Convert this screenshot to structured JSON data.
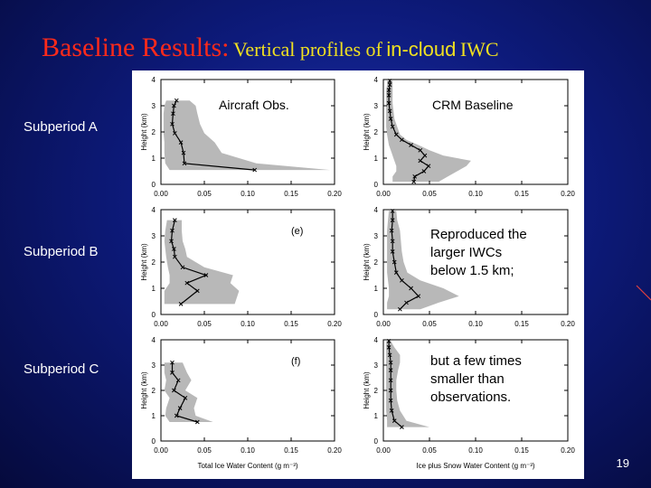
{
  "slide": {
    "title_main": "Baseline Results:",
    "title_part1": "Vertical profiles of",
    "title_part2": "in-cloud",
    "title_part3": "IWC",
    "row_labels": [
      "Subperiod A",
      "Subperiod B",
      "Subperiod C"
    ],
    "col_heads": [
      "Aircraft Obs.",
      "CRM Baseline"
    ],
    "annotation_b": [
      "Reproduced the",
      "larger IWCs",
      "below 1.5 km;"
    ],
    "annotation_c": [
      "but a few times",
      "smaller than",
      "observations."
    ],
    "panel_tags": [
      "(e)",
      "(f)"
    ],
    "page_number": "19",
    "colors": {
      "title_red": "#ff2a1a",
      "title_yellow": "#f0e020",
      "shade": "#b8b8b8",
      "line": "#000000"
    }
  },
  "chart_data": [
    {
      "type": "line",
      "panel": "Aircraft Obs. / Subperiod A",
      "xlim": [
        0,
        0.2
      ],
      "ylim": [
        0,
        4
      ],
      "ylabel": "Height (km)",
      "xticks": [
        "0.00",
        "0.05",
        "0.10",
        "0.15",
        "0.20"
      ],
      "yticks": [
        "0",
        "1",
        "2",
        "3",
        "4"
      ],
      "series": [
        {
          "x": [
            0.108,
            0.027,
            0.026,
            0.023,
            0.016,
            0.013,
            0.014,
            0.015,
            0.018
          ],
          "y": [
            0.55,
            0.8,
            1.2,
            1.6,
            1.95,
            2.3,
            2.7,
            3.0,
            3.2
          ]
        }
      ],
      "band_lo": [
        0.01,
        0.005,
        0.004,
        0.004,
        0.003,
        0.003,
        0.003,
        0.004,
        0.006
      ],
      "band_hi": [
        0.195,
        0.11,
        0.07,
        0.062,
        0.05,
        0.045,
        0.042,
        0.04,
        0.033
      ]
    },
    {
      "type": "line",
      "panel": "CRM Baseline / Subperiod A",
      "xlim": [
        0,
        0.2
      ],
      "ylim": [
        0,
        4
      ],
      "ylabel": "Height (km)",
      "xticks": [
        "0.00",
        "0.05",
        "0.10",
        "0.15",
        "0.20"
      ],
      "yticks": [
        "0",
        "1",
        "2",
        "3",
        "4"
      ],
      "series": [
        {
          "x": [
            0.033,
            0.034,
            0.044,
            0.049,
            0.04,
            0.045,
            0.04,
            0.03,
            0.02,
            0.014,
            0.01,
            0.008,
            0.007,
            0.006,
            0.006,
            0.006,
            0.007,
            0.007
          ],
          "y": [
            0.1,
            0.3,
            0.5,
            0.7,
            0.9,
            1.1,
            1.3,
            1.5,
            1.7,
            1.9,
            2.2,
            2.5,
            2.8,
            3.1,
            3.4,
            3.6,
            3.8,
            3.95
          ]
        }
      ],
      "band_lo": [
        0.01,
        0.01,
        0.014,
        0.014,
        0.012,
        0.01,
        0.008,
        0.006,
        0.005,
        0.004,
        0.003,
        0.003,
        0.003,
        0.003,
        0.003,
        0.003,
        0.004,
        0.004
      ],
      "band_hi": [
        0.06,
        0.07,
        0.08,
        0.09,
        0.095,
        0.065,
        0.05,
        0.038,
        0.025,
        0.018,
        0.015,
        0.012,
        0.011,
        0.01,
        0.01,
        0.01,
        0.01,
        0.01
      ]
    },
    {
      "type": "line",
      "panel": "Aircraft Obs. / Subperiod B",
      "xlim": [
        0,
        0.2
      ],
      "ylim": [
        0,
        4
      ],
      "ylabel": "Height (km)",
      "xticks": [
        "0.00",
        "0.05",
        "0.10",
        "0.15",
        "0.20"
      ],
      "yticks": [
        "0",
        "1",
        "2",
        "3",
        "4"
      ],
      "series": [
        {
          "x": [
            0.023,
            0.042,
            0.03,
            0.052,
            0.025,
            0.016,
            0.015,
            0.012,
            0.013,
            0.016
          ],
          "y": [
            0.4,
            0.9,
            1.2,
            1.5,
            1.8,
            2.2,
            2.5,
            2.8,
            3.2,
            3.6
          ]
        }
      ],
      "band_lo": [
        0.004,
        0.004,
        0.01,
        0.01,
        0.008,
        0.006,
        0.005,
        0.004,
        0.005,
        0.007
      ],
      "band_hi": [
        0.085,
        0.09,
        0.08,
        0.083,
        0.05,
        0.03,
        0.028,
        0.025,
        0.024,
        0.024
      ]
    },
    {
      "type": "line",
      "panel": "CRM Baseline / Subperiod B",
      "xlim": [
        0,
        0.2
      ],
      "ylim": [
        0,
        4
      ],
      "ylabel": "Height (km)",
      "xticks": [
        "0.00",
        "0.05",
        "0.10",
        "0.15",
        "0.20"
      ],
      "yticks": [
        "0",
        "1",
        "2",
        "3",
        "4"
      ],
      "series": [
        {
          "x": [
            0.018,
            0.025,
            0.038,
            0.03,
            0.02,
            0.014,
            0.012,
            0.01,
            0.01,
            0.009,
            0.01,
            0.01
          ],
          "y": [
            0.2,
            0.45,
            0.7,
            1.0,
            1.3,
            1.6,
            2.0,
            2.4,
            2.8,
            3.2,
            3.6,
            3.95
          ]
        }
      ],
      "band_lo": [
        0.004,
        0.004,
        0.006,
        0.006,
        0.005,
        0.004,
        0.004,
        0.004,
        0.004,
        0.004,
        0.005,
        0.006
      ],
      "band_hi": [
        0.04,
        0.06,
        0.082,
        0.065,
        0.04,
        0.026,
        0.022,
        0.02,
        0.019,
        0.018,
        0.015,
        0.014
      ]
    },
    {
      "type": "line",
      "panel": "Aircraft Obs. / Subperiod C",
      "xlim": [
        0,
        0.2
      ],
      "ylim": [
        0,
        4
      ],
      "ylabel": "Height (km)",
      "xticks": [
        "0.00",
        "0.05",
        "0.10",
        "0.15",
        "0.20"
      ],
      "yticks": [
        "0",
        "1",
        "2",
        "3",
        "4"
      ],
      "series": [
        {
          "x": [
            0.042,
            0.018,
            0.022,
            0.028,
            0.015,
            0.02,
            0.013,
            0.013
          ],
          "y": [
            0.75,
            1.0,
            1.3,
            1.7,
            2.0,
            2.4,
            2.7,
            3.1
          ]
        }
      ],
      "band_lo": [
        0.01,
        0.005,
        0.006,
        0.01,
        0.004,
        0.006,
        0.004,
        0.004
      ],
      "band_hi": [
        0.06,
        0.04,
        0.038,
        0.042,
        0.028,
        0.035,
        0.03,
        0.025
      ]
    },
    {
      "type": "line",
      "panel": "CRM Baseline / Subperiod C",
      "xlim": [
        0,
        0.2
      ],
      "ylim": [
        0,
        4
      ],
      "ylabel": "Height (km)",
      "xticks": [
        "0.00",
        "0.05",
        "0.10",
        "0.15",
        "0.20"
      ],
      "yticks": [
        "0",
        "1",
        "2",
        "3",
        "4"
      ],
      "series": [
        {
          "x": [
            0.02,
            0.012,
            0.009,
            0.008,
            0.008,
            0.008,
            0.008,
            0.008,
            0.007,
            0.006,
            0.006
          ],
          "y": [
            0.55,
            0.8,
            1.2,
            1.6,
            2.0,
            2.4,
            2.8,
            3.1,
            3.4,
            3.7,
            3.95
          ]
        }
      ],
      "band_lo": [
        0.004,
        0.004,
        0.003,
        0.003,
        0.003,
        0.003,
        0.003,
        0.003,
        0.003,
        0.003,
        0.003
      ],
      "band_hi": [
        0.05,
        0.025,
        0.018,
        0.015,
        0.014,
        0.014,
        0.016,
        0.018,
        0.018,
        0.012,
        0.008
      ]
    }
  ],
  "axes": {
    "xlabel_left": "Total Ice Water Content  (g m⁻³)",
    "xlabel_right": "Ice plus Snow Water Content  (g m⁻³)"
  }
}
